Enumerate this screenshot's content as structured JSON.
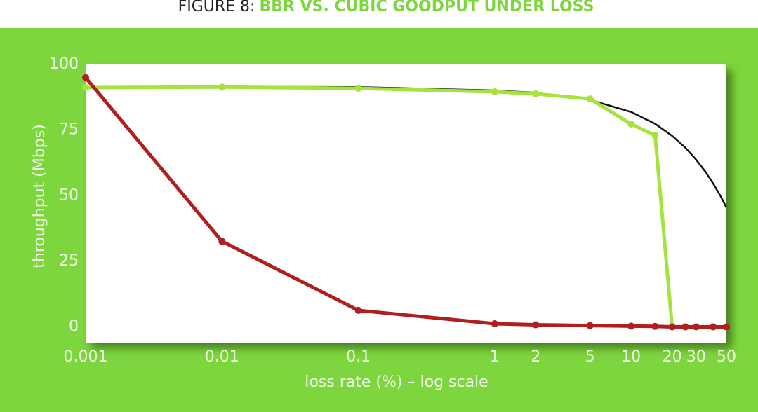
{
  "chart_data": {
    "type": "line",
    "figure_label": "FIGURE 8:",
    "title": "BBR VS. CUBIC GOODPUT UNDER LOSS",
    "x_label": "loss rate (%) – log scale",
    "y_label": "throughput (Mbps)",
    "xscale": "log",
    "xlim": [
      0.001,
      50
    ],
    "xticks": [
      0.001,
      0.01,
      0.1,
      1,
      2,
      5,
      10,
      20,
      30,
      50
    ],
    "ylim": [
      -6,
      100
    ],
    "yticks": [
      0,
      25,
      50,
      75,
      100
    ],
    "grid": false,
    "series": [
      {
        "color": "#111111",
        "markers": false,
        "x": [
          0.001,
          0.01,
          0.1,
          1,
          2,
          5,
          10,
          15,
          20,
          25,
          30,
          35,
          40,
          45,
          50
        ],
        "values": [
          91,
          91.5,
          91.4,
          90.1,
          89.2,
          86.5,
          81.9,
          77.4,
          72.8,
          68.3,
          63.7,
          59.2,
          54.6,
          50.1,
          45.5
        ]
      },
      {
        "color": "#a4e43c",
        "markers": true,
        "x": [
          0.001,
          0.01,
          0.1,
          1,
          2,
          5,
          10,
          15,
          20,
          25
        ],
        "values": [
          91.2,
          91.4,
          90.9,
          89.6,
          88.8,
          86.9,
          77.3,
          73,
          0,
          0
        ]
      },
      {
        "color": "#b01e1e",
        "markers": true,
        "x": [
          0.001,
          0.01,
          0.1,
          1,
          2,
          5,
          10,
          15,
          20,
          25,
          30,
          40,
          50
        ],
        "values": [
          95,
          32.6,
          6.3,
          1.2,
          0.8,
          0.5,
          0.3,
          0.2,
          0,
          0,
          0,
          0,
          0
        ]
      }
    ]
  }
}
